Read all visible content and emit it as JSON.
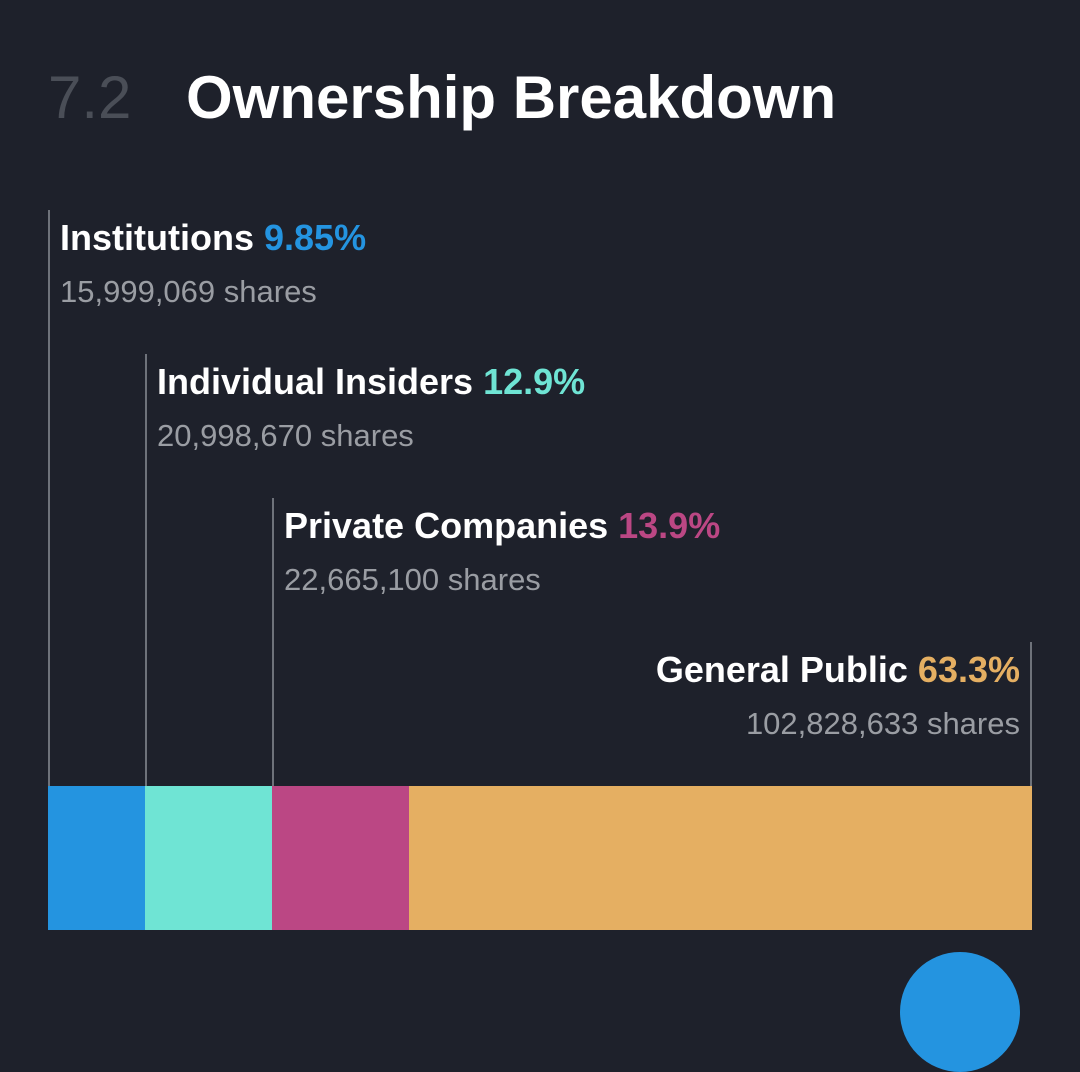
{
  "section": {
    "number": "7.2",
    "title": "Ownership Breakdown"
  },
  "chart_data": {
    "type": "bar",
    "orientation": "horizontal-stacked",
    "title": "Ownership Breakdown",
    "unit": "percent",
    "categories": [
      "Institutions",
      "Individual Insiders",
      "Private Companies",
      "General Public"
    ],
    "values": [
      9.85,
      12.9,
      13.9,
      63.3
    ],
    "percent_labels": [
      "9.85%",
      "12.9%",
      "13.9%",
      "63.3%"
    ],
    "shares_labels": [
      "15,999,069 shares",
      "20,998,670 shares",
      "22,665,100 shares",
      "102,828,633 shares"
    ],
    "shares": [
      15999069,
      20998670,
      22665100,
      102828633
    ],
    "colors": [
      "#2494e0",
      "#6fe4d4",
      "#bb4784",
      "#e5af62"
    ]
  },
  "fab_color": "#2494e0"
}
